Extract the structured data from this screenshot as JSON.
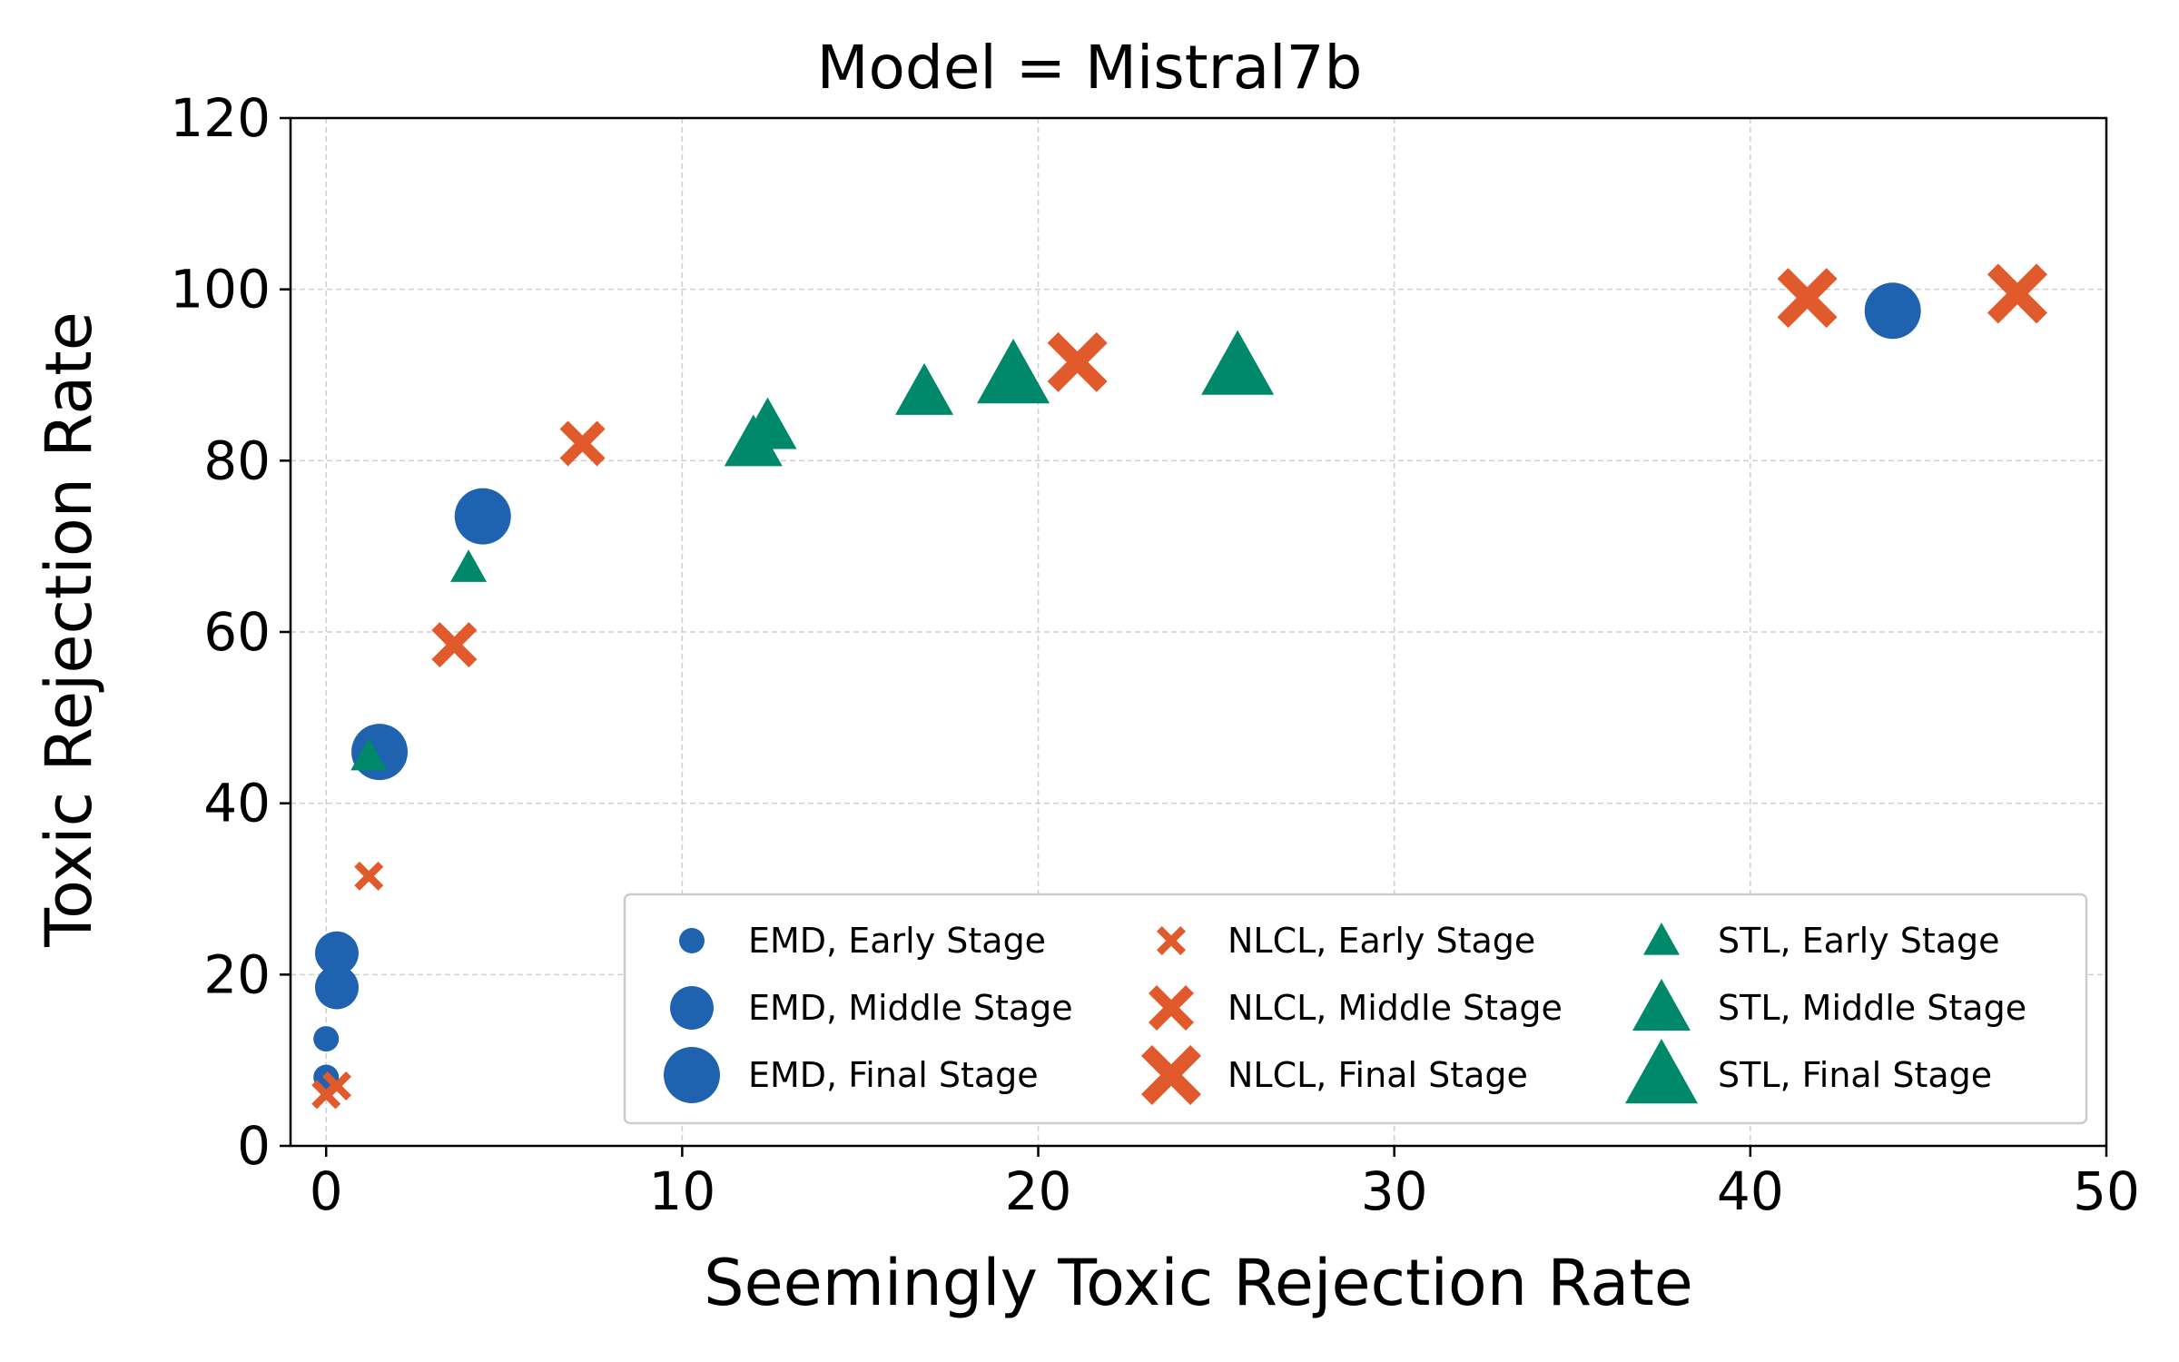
{
  "chart_data": {
    "type": "scatter",
    "title": "Model = Mistral7b",
    "xlabel": "Seemingly Toxic Rejection Rate",
    "ylabel": "Toxic Rejection Rate",
    "xlim": [
      -1,
      50
    ],
    "ylim": [
      0,
      120
    ],
    "xticks": [
      0,
      10,
      20,
      30,
      40,
      50
    ],
    "yticks": [
      0,
      20,
      40,
      60,
      80,
      100,
      120
    ],
    "grid": true,
    "legend_position": "lower-right",
    "colors": {
      "EMD": "#1f63b0",
      "NLCL": "#e05a2b",
      "STL": "#00886a"
    },
    "series": [
      {
        "name": "EMD, Early Stage",
        "method": "EMD",
        "stage": "Early",
        "marker": "circle",
        "points": [
          [
            0.0,
            12.5
          ],
          [
            0.0,
            8.0
          ]
        ]
      },
      {
        "name": "EMD, Middle Stage",
        "method": "EMD",
        "stage": "Middle",
        "marker": "circle",
        "points": [
          [
            0.3,
            18.5
          ],
          [
            0.3,
            22.5
          ]
        ]
      },
      {
        "name": "EMD, Final Stage",
        "method": "EMD",
        "stage": "Final",
        "marker": "circle",
        "points": [
          [
            1.5,
            46.0
          ],
          [
            4.4,
            73.5
          ],
          [
            44.0,
            97.5
          ]
        ]
      },
      {
        "name": "NLCL, Early Stage",
        "method": "NLCL",
        "stage": "Early",
        "marker": "x",
        "points": [
          [
            0.0,
            6.0
          ],
          [
            0.3,
            7.0
          ],
          [
            1.2,
            31.5
          ]
        ]
      },
      {
        "name": "NLCL, Middle Stage",
        "method": "NLCL",
        "stage": "Middle",
        "marker": "x",
        "points": [
          [
            3.6,
            58.5
          ],
          [
            7.2,
            82.0
          ]
        ]
      },
      {
        "name": "NLCL, Final Stage",
        "method": "NLCL",
        "stage": "Final",
        "marker": "x",
        "points": [
          [
            21.1,
            91.5
          ],
          [
            41.6,
            99.0
          ],
          [
            47.5,
            99.5
          ]
        ]
      },
      {
        "name": "STL, Early Stage",
        "method": "STL",
        "stage": "Early",
        "marker": "triangle",
        "points": [
          [
            1.2,
            45.5
          ],
          [
            4.0,
            67.5
          ]
        ]
      },
      {
        "name": "STL, Middle Stage",
        "method": "STL",
        "stage": "Middle",
        "marker": "triangle",
        "points": [
          [
            12.0,
            82.0
          ],
          [
            12.4,
            84.0
          ],
          [
            16.8,
            88.0
          ]
        ]
      },
      {
        "name": "STL, Final Stage",
        "method": "STL",
        "stage": "Final",
        "marker": "triangle",
        "points": [
          [
            19.3,
            90.0
          ],
          [
            25.6,
            91.0
          ]
        ]
      }
    ]
  }
}
